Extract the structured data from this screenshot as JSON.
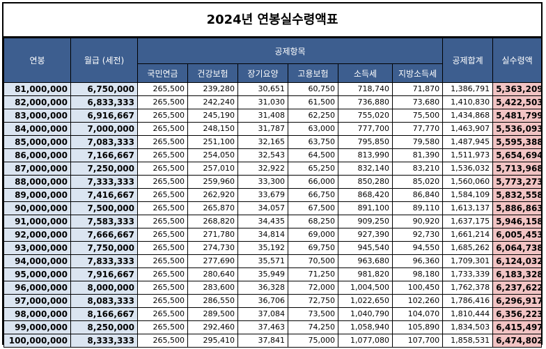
{
  "title": "2024년 연봉실수령액표",
  "headers": {
    "annual_salary": "연봉",
    "monthly_pretax": "월급 (세전)",
    "deductions_group": "공제항목",
    "national_pension": "국민연금",
    "health_insurance": "건강보험",
    "long_term_care": "장기요양",
    "employment_insurance": "고용보험",
    "income_tax": "소득세",
    "local_income_tax": "지방소득세",
    "total_deductions": "공제합계",
    "net_pay": "실수령액"
  },
  "rows": [
    {
      "annual": "81,000,000",
      "monthly": "6,750,000",
      "pension": "265,500",
      "health": "239,280",
      "care": "30,651",
      "employment": "60,750",
      "tax": "718,740",
      "local": "71,870",
      "total": "1,386,791",
      "net": "5,363,209"
    },
    {
      "annual": "82,000,000",
      "monthly": "6,833,333",
      "pension": "265,500",
      "health": "242,240",
      "care": "31,030",
      "employment": "61,500",
      "tax": "736,880",
      "local": "73,680",
      "total": "1,410,830",
      "net": "5,422,503"
    },
    {
      "annual": "83,000,000",
      "monthly": "6,916,667",
      "pension": "265,500",
      "health": "245,190",
      "care": "31,408",
      "employment": "62,250",
      "tax": "755,020",
      "local": "75,500",
      "total": "1,434,868",
      "net": "5,481,799"
    },
    {
      "annual": "84,000,000",
      "monthly": "7,000,000",
      "pension": "265,500",
      "health": "248,150",
      "care": "31,787",
      "employment": "63,000",
      "tax": "777,700",
      "local": "77,770",
      "total": "1,463,907",
      "net": "5,536,093"
    },
    {
      "annual": "85,000,000",
      "monthly": "7,083,333",
      "pension": "265,500",
      "health": "251,100",
      "care": "32,165",
      "employment": "63,750",
      "tax": "795,850",
      "local": "79,580",
      "total": "1,487,945",
      "net": "5,595,388"
    },
    {
      "annual": "86,000,000",
      "monthly": "7,166,667",
      "pension": "265,500",
      "health": "254,050",
      "care": "32,543",
      "employment": "64,500",
      "tax": "813,990",
      "local": "81,390",
      "total": "1,511,973",
      "net": "5,654,694"
    },
    {
      "annual": "87,000,000",
      "monthly": "7,250,000",
      "pension": "265,500",
      "health": "257,010",
      "care": "32,922",
      "employment": "65,250",
      "tax": "832,140",
      "local": "83,210",
      "total": "1,536,032",
      "net": "5,713,968"
    },
    {
      "annual": "88,000,000",
      "monthly": "7,333,333",
      "pension": "265,500",
      "health": "259,960",
      "care": "33,300",
      "employment": "66,000",
      "tax": "850,280",
      "local": "85,020",
      "total": "1,560,060",
      "net": "5,773,273"
    },
    {
      "annual": "89,000,000",
      "monthly": "7,416,667",
      "pension": "265,500",
      "health": "262,920",
      "care": "33,679",
      "employment": "66,750",
      "tax": "868,420",
      "local": "86,840",
      "total": "1,584,109",
      "net": "5,832,558"
    },
    {
      "annual": "90,000,000",
      "monthly": "7,500,000",
      "pension": "265,500",
      "health": "265,870",
      "care": "34,057",
      "employment": "67,500",
      "tax": "891,100",
      "local": "89,110",
      "total": "1,613,137",
      "net": "5,886,863"
    },
    {
      "annual": "91,000,000",
      "monthly": "7,583,333",
      "pension": "265,500",
      "health": "268,820",
      "care": "34,435",
      "employment": "68,250",
      "tax": "909,250",
      "local": "90,920",
      "total": "1,637,175",
      "net": "5,946,158"
    },
    {
      "annual": "92,000,000",
      "monthly": "7,666,667",
      "pension": "265,500",
      "health": "271,780",
      "care": "34,814",
      "employment": "69,000",
      "tax": "927,390",
      "local": "92,730",
      "total": "1,661,214",
      "net": "6,005,453"
    },
    {
      "annual": "93,000,000",
      "monthly": "7,750,000",
      "pension": "265,500",
      "health": "274,730",
      "care": "35,192",
      "employment": "69,750",
      "tax": "945,540",
      "local": "94,550",
      "total": "1,685,262",
      "net": "6,064,738"
    },
    {
      "annual": "94,000,000",
      "monthly": "7,833,333",
      "pension": "265,500",
      "health": "277,690",
      "care": "35,571",
      "employment": "70,500",
      "tax": "963,680",
      "local": "96,360",
      "total": "1,709,301",
      "net": "6,124,032"
    },
    {
      "annual": "95,000,000",
      "monthly": "7,916,667",
      "pension": "265,500",
      "health": "280,640",
      "care": "35,949",
      "employment": "71,250",
      "tax": "981,820",
      "local": "98,180",
      "total": "1,733,339",
      "net": "6,183,328"
    },
    {
      "annual": "96,000,000",
      "monthly": "8,000,000",
      "pension": "265,500",
      "health": "283,600",
      "care": "36,328",
      "employment": "72,000",
      "tax": "1,004,500",
      "local": "100,450",
      "total": "1,762,378",
      "net": "6,237,622"
    },
    {
      "annual": "97,000,000",
      "monthly": "8,083,333",
      "pension": "265,500",
      "health": "286,550",
      "care": "36,706",
      "employment": "72,750",
      "tax": "1,022,650",
      "local": "102,260",
      "total": "1,786,416",
      "net": "6,296,917"
    },
    {
      "annual": "98,000,000",
      "monthly": "8,166,667",
      "pension": "265,500",
      "health": "289,500",
      "care": "37,084",
      "employment": "73,500",
      "tax": "1,040,790",
      "local": "104,070",
      "total": "1,810,444",
      "net": "6,356,223"
    },
    {
      "annual": "99,000,000",
      "monthly": "8,250,000",
      "pension": "265,500",
      "health": "292,460",
      "care": "37,463",
      "employment": "74,250",
      "tax": "1,058,940",
      "local": "105,890",
      "total": "1,834,503",
      "net": "6,415,497"
    },
    {
      "annual": "100,000,000",
      "monthly": "8,333,333",
      "pension": "265,500",
      "health": "295,410",
      "care": "37,841",
      "employment": "75,000",
      "tax": "1,077,080",
      "local": "107,700",
      "total": "1,858,531",
      "net": "6,474,802"
    }
  ],
  "colors": {
    "header_bg": "#3d5e8f",
    "salary_col_bg": "#dbe5f1",
    "net_col_bg": "#f2c4c4"
  }
}
